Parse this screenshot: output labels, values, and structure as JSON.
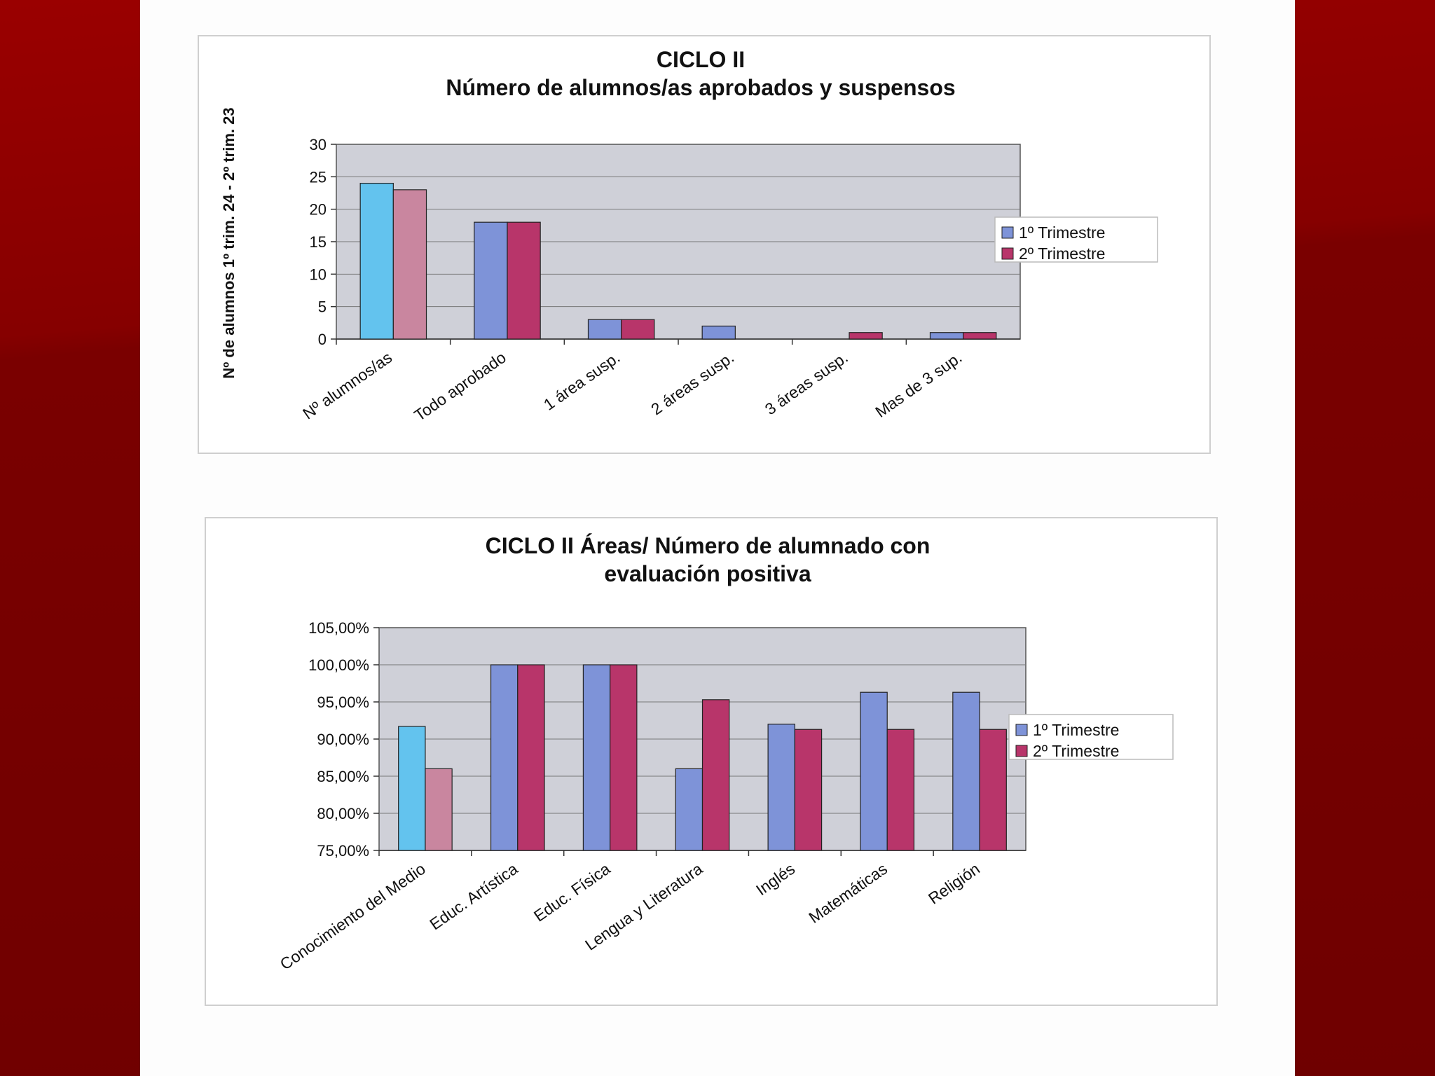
{
  "colors": {
    "slide_bg": "#7a0000",
    "paper": "#fdfdfd",
    "plot_area": "#cfd0d8",
    "series1": "#7e93d8",
    "series2": "#b8356a",
    "series1_light": "#63c3ee",
    "series2_light": "#c9869f"
  },
  "chart_data": [
    {
      "type": "bar",
      "title": "CICLO II",
      "subtitle": "Número de alumnos/as aprobados y suspensos",
      "ylabel": "Nº de alumnos 1º trim. 24 - 2º trim. 23",
      "xlabel": "",
      "ylim": [
        0,
        30
      ],
      "yticks": [
        "0",
        "5",
        "10",
        "15",
        "20",
        "25",
        "30"
      ],
      "grid": true,
      "legend_position": "right",
      "categories": [
        "Nº alumnos/as",
        "Todo aprobado",
        "1 área susp.",
        "2 áreas susp.",
        "3 áreas susp.",
        "Mas de 3 sup."
      ],
      "series": [
        {
          "name": "1º Trimestre",
          "values": [
            24,
            18,
            3,
            2,
            0,
            1
          ]
        },
        {
          "name": "2º Trimestre",
          "values": [
            23,
            18,
            3,
            0,
            1,
            1
          ]
        }
      ]
    },
    {
      "type": "bar",
      "title": "CICLO II Áreas/ Número de alumnado con",
      "subtitle": "evaluación positiva",
      "ylabel": "",
      "xlabel": "",
      "ylim": [
        0.75,
        1.05
      ],
      "yticks": [
        "75,00%",
        "80,00%",
        "85,00%",
        "90,00%",
        "95,00%",
        "100,00%",
        "105,00%"
      ],
      "grid": true,
      "legend_position": "right",
      "categories": [
        "Conocimiento del Medio",
        "Educ. Artística",
        "Educ. Física",
        "Lengua y Literatura",
        "Inglés",
        "Matemáticas",
        "Religión"
      ],
      "series": [
        {
          "name": "1º Trimestre",
          "values": [
            0.917,
            1.0,
            1.0,
            0.86,
            0.92,
            0.963,
            0.963
          ]
        },
        {
          "name": "2º Trimestre",
          "values": [
            0.86,
            1.0,
            1.0,
            0.953,
            0.913,
            0.913,
            0.913
          ]
        }
      ]
    }
  ]
}
